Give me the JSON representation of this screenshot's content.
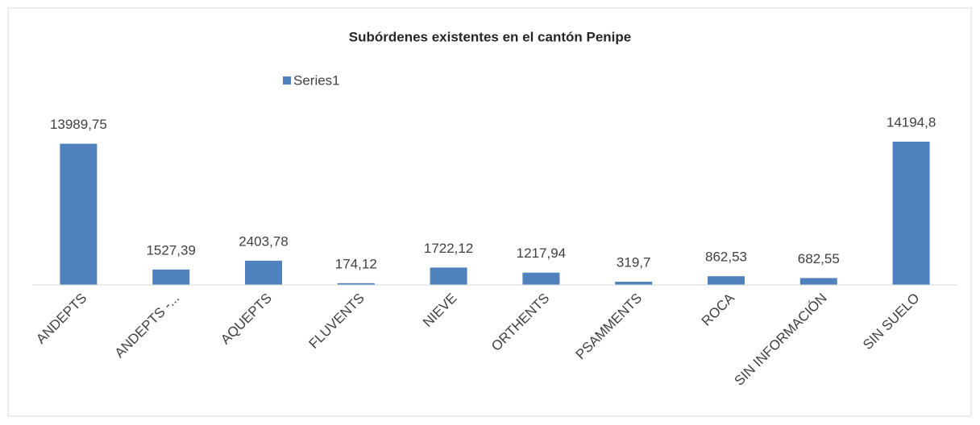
{
  "chart_data": {
    "type": "bar",
    "title": "Subórdenes existentes en el cantón Penipe",
    "categories": [
      "ANDEPTS",
      "ANDEPTS -...",
      "AQUEPTS",
      "FLUVENTS",
      "NIEVE",
      "ORTHENTS",
      "PSAMMENTS",
      "ROCA",
      "SIN INFORMACIÓN",
      "SIN SUELO"
    ],
    "series": [
      {
        "name": "Series1",
        "color": "#4f81bd",
        "values": [
          13989.75,
          1527.39,
          2403.78,
          174.12,
          1722.12,
          1217.94,
          319.7,
          862.53,
          682.55,
          14194.8
        ],
        "value_labels": [
          "13989,75",
          "1527,39",
          "2403,78",
          "174,12",
          "1722,12",
          "1217,94",
          "319,7",
          "862,53",
          "682,55",
          "14194,8"
        ]
      }
    ],
    "legend": "top"
  }
}
